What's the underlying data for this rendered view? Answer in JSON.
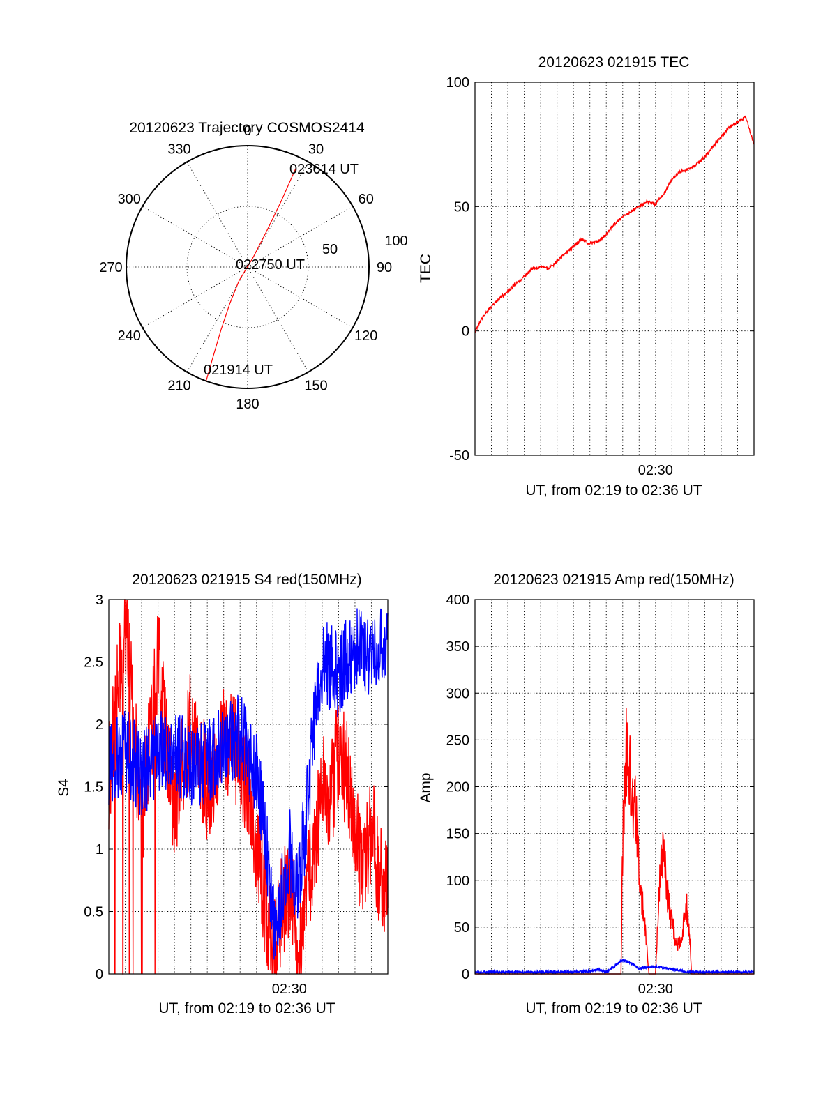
{
  "chart_data": [
    {
      "type": "polar",
      "title": "20120623 Trajectory COSMOS2414",
      "azimuth_labels": [
        "0",
        "30",
        "60",
        "90",
        "120",
        "150",
        "180",
        "210",
        "240",
        "270",
        "300",
        "330"
      ],
      "radial_labels": [
        "50",
        "100"
      ],
      "trajectory": [
        {
          "az": 200,
          "zen": 90
        },
        {
          "az": 201,
          "zen": 72
        },
        {
          "az": 203,
          "zen": 50
        },
        {
          "az": 206,
          "zen": 30
        },
        {
          "az": 212,
          "zen": 12
        },
        {
          "az": 30,
          "zen": 8
        },
        {
          "az": 28,
          "zen": 30
        },
        {
          "az": 27,
          "zen": 55
        },
        {
          "az": 26,
          "zen": 82
        }
      ],
      "annotations": [
        "023614 UT",
        "022750 UT",
        "021914 UT"
      ],
      "colors": {
        "trajectory": "#ff0000"
      }
    },
    {
      "type": "line",
      "title": "20120623 021915 TEC",
      "xlabel": "UT, from 02:19 to 02:36 UT",
      "ylabel": "TEC",
      "x_tick_labels": [
        "02:30"
      ],
      "y_tick_labels": [
        "-50",
        "0",
        "50",
        "100"
      ],
      "ylim": [
        -50,
        100
      ],
      "xlim_minutes": [
        0,
        17
      ],
      "series": [
        {
          "color": "#ff0000",
          "x_minutes": [
            0,
            0.5,
            1.0,
            1.5,
            2.0,
            2.5,
            3.0,
            3.5,
            4.0,
            4.5,
            5.0,
            5.5,
            6.0,
            6.5,
            7.0,
            7.5,
            8.0,
            8.5,
            9.0,
            9.5,
            10.0,
            10.5,
            11.0,
            11.5,
            12.0,
            12.5,
            13.0,
            13.5,
            14.0,
            14.5,
            15.0,
            15.5,
            16.0,
            16.5,
            17.0
          ],
          "values": [
            0,
            6,
            10,
            13,
            16,
            19,
            22,
            25,
            26,
            25,
            28,
            31,
            34,
            37,
            35,
            36,
            39,
            43,
            46,
            48,
            50,
            52,
            51,
            55,
            61,
            64,
            65,
            67,
            70,
            74,
            78,
            82,
            84,
            86,
            75
          ]
        }
      ]
    },
    {
      "type": "line",
      "title": "20120623 021915 S4 red(150MHz)",
      "xlabel": "UT, from 02:19 to 02:36 UT",
      "ylabel": "S4",
      "x_tick_labels": [
        "02:30"
      ],
      "y_tick_labels": [
        "0",
        "0.5",
        "1",
        "1.5",
        "2",
        "2.5",
        "3"
      ],
      "ylim": [
        0,
        3
      ],
      "xlim_minutes": [
        0,
        17
      ],
      "series": [
        {
          "color": "#0000ff",
          "x_minutes": [
            0,
            1,
            2,
            3,
            4,
            5,
            6,
            7,
            8,
            9,
            9.5,
            10,
            10.5,
            11,
            11.5,
            12,
            12.5,
            13,
            14,
            15,
            16,
            17
          ],
          "values": [
            1.7,
            1.8,
            1.6,
            1.75,
            1.8,
            1.65,
            1.7,
            1.8,
            1.9,
            1.6,
            1.2,
            0.4,
            0.6,
            1.0,
            0.7,
            1.2,
            2.0,
            2.5,
            2.4,
            2.6,
            2.5,
            2.7
          ]
        },
        {
          "color": "#ff0000",
          "x_minutes": [
            0,
            1,
            2,
            3,
            4,
            5,
            6,
            7,
            8,
            8.5,
            9,
            9.5,
            10,
            10.5,
            11,
            11.5,
            12,
            12.5,
            13,
            13.5,
            14,
            14.5,
            15,
            15.5,
            16,
            16.5,
            17
          ],
          "values": [
            1.6,
            2.8,
            1.2,
            2.5,
            1.3,
            2.0,
            1.5,
            1.9,
            1.7,
            1.5,
            1.1,
            0.6,
            0.15,
            0.5,
            0.7,
            0.2,
            0.6,
            1.0,
            1.5,
            1.4,
            1.8,
            1.6,
            1.1,
            0.8,
            1.2,
            0.8,
            0.7
          ]
        }
      ]
    },
    {
      "type": "line",
      "title": "20120623 021915 Amp red(150MHz)",
      "xlabel": "UT, from 02:19 to 02:36 UT",
      "ylabel": "Amp",
      "x_tick_labels": [
        "02:30"
      ],
      "y_tick_labels": [
        "0",
        "50",
        "100",
        "150",
        "200",
        "250",
        "300",
        "350",
        "400"
      ],
      "ylim": [
        0,
        400
      ],
      "xlim_minutes": [
        0,
        17
      ],
      "series": [
        {
          "color": "#ff0000",
          "x_minutes": [
            0,
            8.9,
            9.0,
            9.2,
            9.5,
            9.8,
            10.0,
            10.3,
            10.6,
            11.0,
            11.3,
            11.5,
            11.7,
            12.0,
            12.3,
            12.6,
            12.9,
            13.1,
            13.2,
            17
          ],
          "values": [
            0,
            0,
            150,
            245,
            200,
            170,
            110,
            60,
            0,
            0,
            120,
            135,
            90,
            55,
            30,
            40,
            70,
            35,
            0,
            0
          ]
        },
        {
          "color": "#0000ff",
          "x_minutes": [
            0,
            2,
            4,
            6,
            7,
            7.5,
            8,
            9,
            9.5,
            10,
            11,
            12,
            13,
            14,
            15,
            17
          ],
          "values": [
            2,
            2,
            2,
            2,
            3,
            5,
            2,
            15,
            12,
            6,
            8,
            5,
            2,
            2,
            2,
            2
          ]
        }
      ]
    }
  ]
}
